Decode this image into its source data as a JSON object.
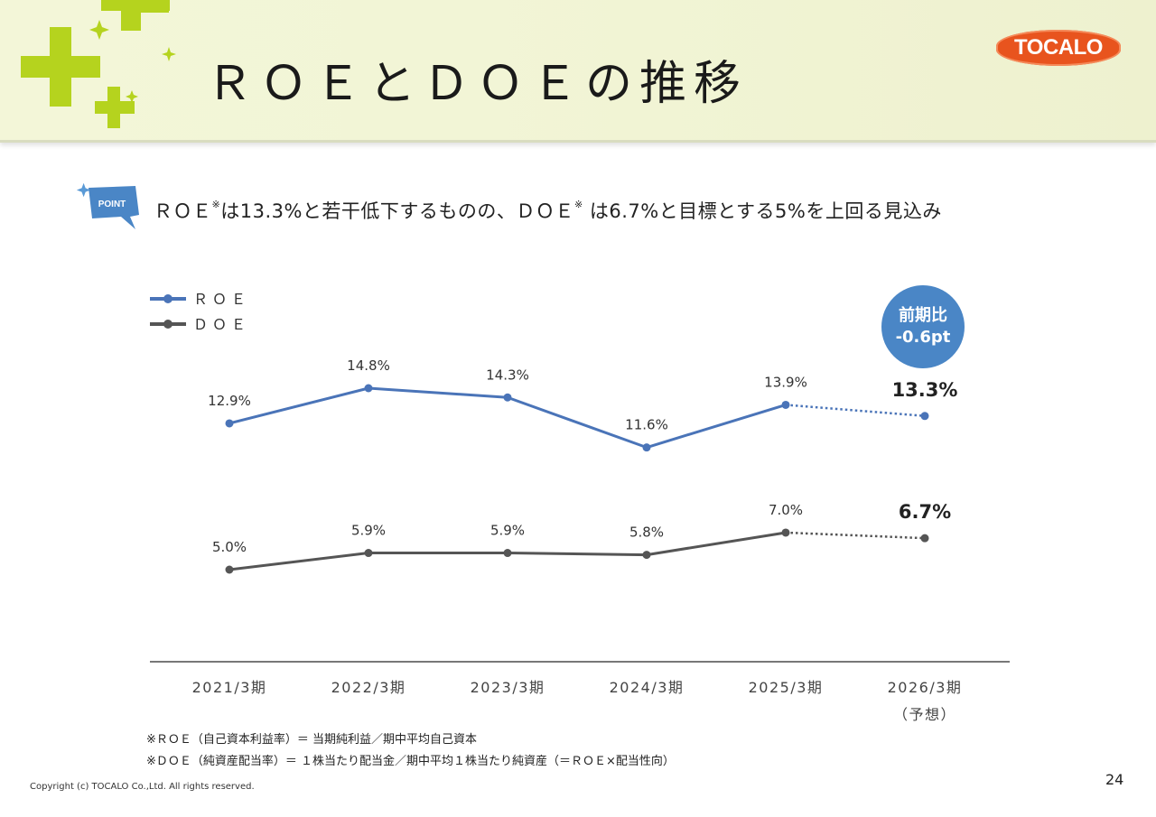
{
  "title": "ＲＯＥとＤＯＥの推移",
  "logo": "TOCALO",
  "point": {
    "badge": "POINT",
    "part1": "ＲＯＥ",
    "mark1": "※",
    "part2": "は13.3%と若干低下するものの、ＤＯＥ",
    "mark2": "※",
    "part3": " は6.7%と目標とする5%を上回る見込み"
  },
  "bubble": {
    "line1": "前期比",
    "line2": "-0.6pt"
  },
  "chart_data": {
    "type": "line",
    "categories": [
      "2021/3期",
      "2022/3期",
      "2023/3期",
      "2024/3期",
      "2025/3期",
      "2026/3期"
    ],
    "category_sublabels": [
      "",
      "",
      "",
      "",
      "",
      "（予想）"
    ],
    "series": [
      {
        "name": "ＲＯＥ",
        "color": "#4a74b8",
        "values": [
          12.9,
          14.8,
          14.3,
          11.6,
          13.9,
          13.3
        ],
        "labels": [
          "12.9%",
          "14.8%",
          "14.3%",
          "11.6%",
          "13.9%",
          "13.3%"
        ],
        "forecast_from_index": 4
      },
      {
        "name": "ＤＯＥ",
        "color": "#555555",
        "values": [
          5.0,
          5.9,
          5.9,
          5.8,
          7.0,
          6.7
        ],
        "labels": [
          "5.0%",
          "5.9%",
          "5.9%",
          "5.8%",
          "7.0%",
          "6.7%"
        ],
        "forecast_from_index": 4
      }
    ],
    "legend_position": "top-left"
  },
  "footnotes": [
    "※ＲＯＥ（自己資本利益率）＝ 当期純利益／期中平均自己資本",
    "※ＤＯＥ（純資産配当率）＝ １株当たり配当金／期中平均１株当たり純資産（＝ＲＯＥ×配当性向）"
  ],
  "copyright": "Copyright (c) TOCALO Co.,Ltd. All rights reserved.",
  "page_number": "24"
}
